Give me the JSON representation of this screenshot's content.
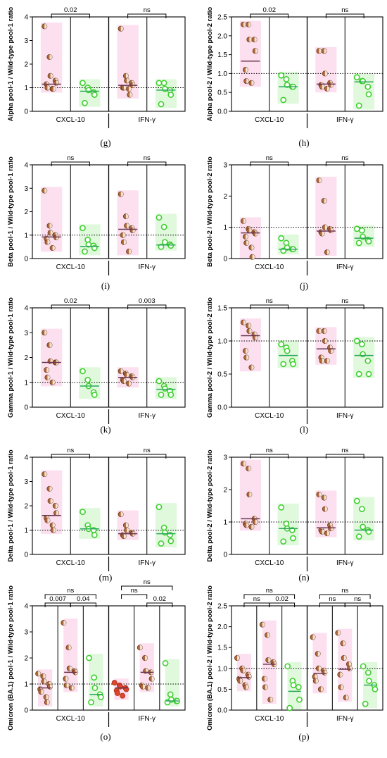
{
  "colors": {
    "brown_fill": "#b06a3b",
    "brown_edge": "#6b3515",
    "green_edge": "#3fcf2f",
    "red_dot": "#e0452f",
    "pink_band": "#fbd6ea",
    "green_band": "#d6f7d2",
    "median_brown": "#6b3550",
    "median_green": "#29a85a"
  },
  "chart_data": [
    {
      "panel": "(g)",
      "type": "scatter",
      "ylabel": "Alpha pool-1 / Wild-type pool-1 ratio",
      "ylim": [
        0,
        4
      ],
      "yticks": [
        "0",
        "1",
        "2",
        "3",
        "4"
      ],
      "groups": [
        "CXCL-10",
        "IFN-γ"
      ],
      "reference_line": 1,
      "series": [
        {
          "kind": "brown",
          "values": [
            3.6,
            2.3,
            1.5,
            1.3,
            1.2,
            1.15,
            1.0,
            0.95,
            0.95
          ],
          "median": 1.15
        },
        {
          "kind": "green",
          "values": [
            1.2,
            1.0,
            0.9,
            0.8,
            0.7,
            0.35
          ],
          "median": 0.85
        },
        {
          "kind": "brown",
          "values": [
            3.5,
            1.5,
            1.3,
            1.2,
            1.1,
            1.0,
            1.0,
            0.95,
            0.7
          ],
          "median": 1.1
        },
        {
          "kind": "green",
          "values": [
            1.2,
            1.2,
            0.95,
            0.9,
            0.7,
            0.3
          ],
          "median": 0.9
        }
      ],
      "comparisons": [
        {
          "from": 0,
          "to": 1,
          "label": "0.02",
          "level": 0
        },
        {
          "from": 2,
          "to": 3,
          "label": "ns",
          "level": 0
        }
      ]
    },
    {
      "panel": "(h)",
      "type": "scatter",
      "ylabel": "Alpha pool-2 / Wild-type pool-2 ratio",
      "ylim": [
        0,
        2.5
      ],
      "yticks": [
        "0.0",
        "0.5",
        "1.0",
        "1.5",
        "2.0",
        "2.5"
      ],
      "groups": [
        "CXCL-10",
        "IFN-γ"
      ],
      "reference_line": 1,
      "series": [
        {
          "kind": "brown",
          "values": [
            2.3,
            2.3,
            1.9,
            1.9,
            1.6,
            1.1,
            0.8,
            0.75
          ],
          "median": 1.33
        },
        {
          "kind": "green",
          "values": [
            0.95,
            0.85,
            0.7,
            0.65,
            0.65,
            0.3
          ],
          "median": 0.65
        },
        {
          "kind": "brown",
          "values": [
            1.6,
            1.6,
            1.0,
            0.75,
            0.7,
            0.7,
            0.65,
            0.6
          ],
          "median": 0.72
        },
        {
          "kind": "green",
          "values": [
            0.9,
            0.8,
            0.8,
            0.65,
            0.45,
            0.15
          ],
          "median": 0.78
        }
      ],
      "comparisons": [
        {
          "from": 0,
          "to": 1,
          "label": "0.02",
          "level": 0
        },
        {
          "from": 2,
          "to": 3,
          "label": "ns",
          "level": 0
        }
      ]
    },
    {
      "panel": "(i)",
      "type": "scatter",
      "ylabel": "Beta pool-1 / Wild-type pool-1 ratio",
      "ylim": [
        0,
        4
      ],
      "yticks": [
        "0",
        "1",
        "2",
        "3",
        "4"
      ],
      "groups": [
        "CXCL-10",
        "IFN-γ"
      ],
      "reference_line": 1,
      "series": [
        {
          "kind": "brown",
          "values": [
            2.9,
            1.4,
            1.1,
            1.0,
            0.9,
            0.85,
            0.7,
            0.45
          ],
          "median": 0.92
        },
        {
          "kind": "green",
          "values": [
            1.3,
            0.8,
            0.6,
            0.55,
            0.45,
            0.3
          ],
          "median": 0.52
        },
        {
          "kind": "brown",
          "values": [
            2.75,
            1.8,
            1.4,
            1.3,
            1.2,
            1.0,
            0.7,
            0.3
          ],
          "median": 1.25
        },
        {
          "kind": "green",
          "values": [
            1.75,
            1.35,
            0.7,
            0.6,
            0.55,
            0.5
          ],
          "median": 0.58
        }
      ],
      "comparisons": [
        {
          "from": 0,
          "to": 1,
          "label": "ns",
          "level": 0
        },
        {
          "from": 2,
          "to": 3,
          "label": "ns",
          "level": 0
        }
      ]
    },
    {
      "panel": "(j)",
      "type": "scatter",
      "ylabel": "Beta pool-2 / Wild-type pool-2 ratio",
      "ylim": [
        0,
        3
      ],
      "yticks": [
        "0",
        "1",
        "2",
        "3"
      ],
      "groups": [
        "CXCL-10",
        "IFN-γ"
      ],
      "reference_line": 1,
      "series": [
        {
          "kind": "brown",
          "values": [
            1.2,
            0.95,
            0.9,
            0.85,
            0.8,
            0.7,
            0.5,
            0.35,
            0.05
          ],
          "median": 0.82
        },
        {
          "kind": "green",
          "values": [
            0.65,
            0.5,
            0.35,
            0.3,
            0.3,
            0.25
          ],
          "median": 0.3
        },
        {
          "kind": "brown",
          "values": [
            2.5,
            1.85,
            1.0,
            0.95,
            0.9,
            0.85,
            0.8,
            0.2
          ],
          "median": 0.88
        },
        {
          "kind": "green",
          "values": [
            0.95,
            0.9,
            0.7,
            0.6,
            0.55,
            0.5
          ],
          "median": 0.65
        }
      ],
      "comparisons": [
        {
          "from": 0,
          "to": 1,
          "label": "ns",
          "level": 0
        },
        {
          "from": 2,
          "to": 3,
          "label": "ns",
          "level": 0
        }
      ]
    },
    {
      "panel": "(k)",
      "type": "scatter",
      "ylabel": "Gamma pool-1 / Wild-type pool-1 ratio",
      "ylim": [
        0,
        4
      ],
      "yticks": [
        "0",
        "1",
        "2",
        "3",
        "4"
      ],
      "groups": [
        "CXCL-10",
        "IFN-γ"
      ],
      "reference_line": 1,
      "series": [
        {
          "kind": "brown",
          "values": [
            3.0,
            2.5,
            1.85,
            1.8,
            1.8,
            1.5,
            1.2,
            1.0
          ],
          "median": 1.8
        },
        {
          "kind": "green",
          "values": [
            1.45,
            1.1,
            0.85,
            0.6,
            0.5
          ],
          "median": 0.85
        },
        {
          "kind": "brown",
          "values": [
            1.45,
            1.35,
            1.3,
            1.25,
            1.2,
            1.1,
            1.05,
            0.95
          ],
          "median": 1.2
        },
        {
          "kind": "green",
          "values": [
            1.05,
            0.85,
            0.75,
            0.65,
            0.5,
            0.5
          ],
          "median": 0.72
        }
      ],
      "comparisons": [
        {
          "from": 0,
          "to": 1,
          "label": "0.02",
          "level": 0
        },
        {
          "from": 2,
          "to": 3,
          "label": "0.003",
          "level": 0
        }
      ]
    },
    {
      "panel": "(l)",
      "type": "scatter",
      "ylabel": "Gamma pool-2 / Wild-type pool-2 ratio",
      "ylim": [
        0,
        1.5
      ],
      "yticks": [
        "0.0",
        "0.5",
        "1.0",
        "1.5"
      ],
      "groups": [
        "CXCL-10",
        "IFN-γ"
      ],
      "reference_line": 1,
      "series": [
        {
          "kind": "brown",
          "values": [
            1.28,
            1.23,
            1.15,
            1.1,
            1.05,
            0.85,
            0.75,
            0.6
          ],
          "median": 1.08
        },
        {
          "kind": "green",
          "values": [
            0.95,
            0.9,
            0.85,
            0.7,
            0.65,
            0.65
          ],
          "median": 0.78
        },
        {
          "kind": "brown",
          "values": [
            1.15,
            1.15,
            1.0,
            0.9,
            0.85,
            0.75,
            0.7,
            0.7
          ],
          "median": 0.88
        },
        {
          "kind": "green",
          "values": [
            1.0,
            0.95,
            0.8,
            0.7,
            0.5,
            0.5
          ],
          "median": 0.78
        }
      ],
      "comparisons": [
        {
          "from": 0,
          "to": 1,
          "label": "ns",
          "level": 0
        },
        {
          "from": 2,
          "to": 3,
          "label": "ns",
          "level": 0
        }
      ]
    },
    {
      "panel": "(m)",
      "type": "scatter",
      "ylabel": "Delta pool-1 / Wild-type pool-1 ratio",
      "ylim": [
        0,
        4
      ],
      "yticks": [
        "0",
        "1",
        "2",
        "3",
        "4"
      ],
      "groups": [
        "CXCL-10",
        "IFN-γ"
      ],
      "reference_line": 1,
      "series": [
        {
          "kind": "brown",
          "values": [
            3.3,
            2.7,
            2.2,
            2.0,
            1.7,
            1.5,
            1.4,
            1.2,
            1.0
          ],
          "median": 1.6
        },
        {
          "kind": "green",
          "values": [
            1.75,
            1.2,
            1.05,
            1.0,
            0.8
          ],
          "median": 1.05
        },
        {
          "kind": "brown",
          "values": [
            1.65,
            1.2,
            1.0,
            0.9,
            0.85,
            0.8,
            0.75
          ],
          "median": 0.85
        },
        {
          "kind": "green",
          "values": [
            1.95,
            1.1,
            0.9,
            0.8,
            0.55,
            0.45
          ],
          "median": 0.85
        }
      ],
      "comparisons": [
        {
          "from": 0,
          "to": 1,
          "label": "ns",
          "level": 0
        },
        {
          "from": 2,
          "to": 3,
          "label": "ns",
          "level": 0
        }
      ]
    },
    {
      "panel": "(n)",
      "type": "scatter",
      "ylabel": "Delta pool-2 / Wild-type pool-2 ratio",
      "ylim": [
        0,
        3
      ],
      "yticks": [
        "0",
        "1",
        "2",
        "3"
      ],
      "groups": [
        "CXCL-10",
        "IFN-γ"
      ],
      "reference_line": 1,
      "series": [
        {
          "kind": "brown",
          "values": [
            2.8,
            2.65,
            1.85,
            1.1,
            1.0,
            0.95,
            0.9,
            0.85
          ],
          "median": 1.1
        },
        {
          "kind": "green",
          "values": [
            1.45,
            0.95,
            0.8,
            0.75,
            0.5,
            0.4
          ],
          "median": 0.8
        },
        {
          "kind": "brown",
          "values": [
            1.85,
            1.75,
            1.4,
            0.9,
            0.8,
            0.75,
            0.7,
            0.65
          ],
          "median": 0.82
        },
        {
          "kind": "green",
          "values": [
            1.65,
            1.4,
            0.85,
            0.75,
            0.7,
            0.55
          ],
          "median": 0.75
        }
      ],
      "comparisons": [
        {
          "from": 0,
          "to": 1,
          "label": "ns",
          "level": 0
        },
        {
          "from": 2,
          "to": 3,
          "label": "ns",
          "level": 0
        }
      ]
    },
    {
      "panel": "(o)",
      "type": "scatter",
      "ylabel": "Omicron (BA.1) pool-1 / Wild-type pool-1 ratio",
      "ylim": [
        0,
        4
      ],
      "yticks": [
        "0",
        "1",
        "2",
        "3",
        "4"
      ],
      "groups": [
        "CXCL-10",
        "IFN-γ"
      ],
      "reference_line": 1,
      "series": [
        {
          "kind": "brown",
          "values": [
            1.4,
            1.3,
            1.1,
            1.0,
            0.9,
            0.8,
            0.7,
            0.5,
            0.3
          ],
          "median": 0.85
        },
        {
          "kind": "brown",
          "values": [
            3.35,
            2.4,
            1.6,
            1.5,
            1.45,
            1.2,
            0.95,
            0.85
          ],
          "median": 1.45
        },
        {
          "kind": "green",
          "values": [
            2.0,
            1.25,
            0.85,
            0.6,
            0.5,
            0.3
          ],
          "median": 0.6
        },
        {
          "kind": "red",
          "values": [
            1.05,
            0.95,
            0.9,
            0.85,
            0.8,
            0.75,
            0.65,
            0.55
          ],
          "median": 0.85
        },
        {
          "kind": "brown",
          "values": [
            2.4,
            2.0,
            1.5,
            1.45,
            1.2,
            0.95,
            0.9,
            0.85
          ],
          "median": 1.45
        },
        {
          "kind": "green",
          "values": [
            1.8,
            0.6,
            0.4,
            0.35,
            0.35,
            0.3
          ],
          "median": 0.35
        }
      ],
      "comparisons": [
        {
          "from": 0,
          "to": 1,
          "label": "0.007",
          "level": 0
        },
        {
          "from": 1,
          "to": 2,
          "label": "0.04",
          "level": 0
        },
        {
          "from": 0,
          "to": 2,
          "label": "ns",
          "level": 1
        },
        {
          "from": 3,
          "to": 4,
          "label": "ns",
          "level": 1
        },
        {
          "from": 4,
          "to": 5,
          "label": "0.02",
          "level": 0
        },
        {
          "from": 3,
          "to": 5,
          "label": "ns",
          "level": 2
        }
      ]
    },
    {
      "panel": "(p)",
      "type": "scatter",
      "ylabel": "Omicron (BA.1) pool-2 / Wild-type pool-2 ratio",
      "ylim": [
        0,
        2.5
      ],
      "yticks": [
        "0.0",
        "0.5",
        "1.0",
        "1.5",
        "2.0",
        "2.5"
      ],
      "groups": [
        "CXCL-10",
        "IFN-γ"
      ],
      "reference_line": 1,
      "series": [
        {
          "kind": "brown",
          "values": [
            1.25,
            1.0,
            0.95,
            0.85,
            0.8,
            0.75,
            0.7,
            0.6,
            0.55
          ],
          "median": 0.78
        },
        {
          "kind": "brown",
          "values": [
            2.05,
            1.8,
            1.2,
            1.15,
            1.1,
            0.75,
            0.55,
            0.25
          ],
          "median": 1.1
        },
        {
          "kind": "green",
          "values": [
            1.05,
            0.7,
            0.6,
            0.55,
            0.25,
            0.05
          ],
          "median": 0.45
        },
        {
          "kind": "brown",
          "values": [
            1.75,
            1.35,
            1.0,
            0.95,
            0.9,
            0.8,
            0.7,
            0.5
          ],
          "median": 0.88
        },
        {
          "kind": "brown",
          "values": [
            1.85,
            1.6,
            1.25,
            1.1,
            1.0,
            0.85,
            0.55,
            0.3
          ],
          "median": 0.98
        },
        {
          "kind": "green",
          "values": [
            1.05,
            0.9,
            0.7,
            0.6,
            0.5,
            0.15
          ],
          "median": 0.6
        }
      ],
      "comparisons": [
        {
          "from": 0,
          "to": 1,
          "label": "ns",
          "level": 0
        },
        {
          "from": 1,
          "to": 2,
          "label": "0.02",
          "level": 0
        },
        {
          "from": 0,
          "to": 2,
          "label": "ns",
          "level": 1
        },
        {
          "from": 3,
          "to": 4,
          "label": "ns",
          "level": 0
        },
        {
          "from": 4,
          "to": 5,
          "label": "ns",
          "level": 0
        },
        {
          "from": 3,
          "to": 5,
          "label": "ns",
          "level": 1
        }
      ]
    }
  ]
}
